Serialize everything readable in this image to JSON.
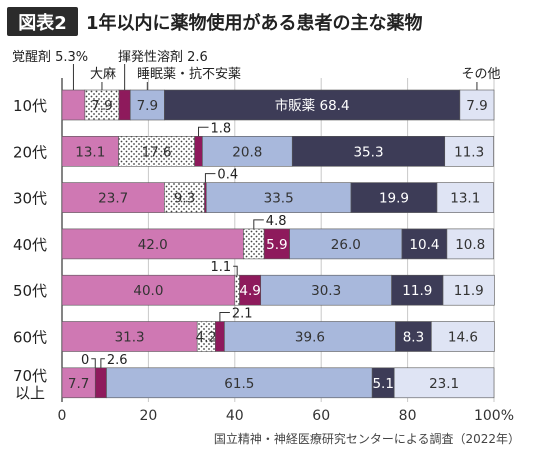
{
  "header": {
    "badge": "図表2",
    "title": "1年以内に薬物使用がある患者の主な薬物"
  },
  "source": "国立精神・神経医療研究センターによる調査（2022年）",
  "colors": {
    "header_bg": "#2b2b2b",
    "header_text": "#ffffff",
    "stimulant": "#cf78b3",
    "cannabis": "#ffffff",
    "volatile_solvent": "#8e1a5c",
    "hypnotic": "#a8b8dc",
    "otc": "#3d3c57",
    "other": "#dfe4f4"
  },
  "chart_data": {
    "type": "bar",
    "orientation": "horizontal",
    "stacked": true,
    "title": "1年以内に薬物使用がある患者の主な薬物",
    "categories": [
      "10代",
      "20代",
      "30代",
      "40代",
      "50代",
      "60代",
      "70代 以上"
    ],
    "series": [
      {
        "name": "覚醒剤",
        "color": "#cf78b3",
        "values": [
          5.3,
          13.1,
          23.7,
          42.0,
          40.0,
          31.3,
          7.7
        ]
      },
      {
        "name": "大麻",
        "color": "#ffffff",
        "pattern": "dots",
        "values": [
          7.9,
          17.6,
          9.3,
          4.8,
          1.1,
          4.2,
          0
        ]
      },
      {
        "name": "揮発性溶剤",
        "color": "#8e1a5c",
        "values": [
          2.6,
          1.8,
          0.4,
          5.9,
          4.9,
          2.1,
          2.6
        ]
      },
      {
        "name": "睡眠薬・抗不安薬",
        "color": "#a8b8dc",
        "values": [
          7.9,
          20.8,
          33.5,
          26.0,
          30.3,
          39.6,
          61.5
        ]
      },
      {
        "name": "市販薬",
        "color": "#3d3c57",
        "values": [
          68.4,
          35.3,
          19.9,
          10.4,
          11.9,
          8.3,
          5.1
        ]
      },
      {
        "name": "その他",
        "color": "#dfe4f4",
        "values": [
          7.9,
          11.3,
          13.1,
          10.8,
          11.9,
          14.6,
          23.1
        ]
      }
    ],
    "bar_labels": [
      [
        "",
        "7.9",
        "",
        "7.9",
        "市販薬 68.4",
        "7.9"
      ],
      [
        "13.1",
        "17.6",
        "",
        "20.8",
        "35.3",
        "11.3"
      ],
      [
        "23.7",
        "9.3",
        "",
        "33.5",
        "19.9",
        "13.1"
      ],
      [
        "42.0",
        "",
        "5.9",
        "26.0",
        "10.4",
        "10.8"
      ],
      [
        "40.0",
        "",
        "4.9",
        "30.3",
        "11.9",
        "11.9"
      ],
      [
        "31.3",
        "4.2",
        "",
        "39.6",
        "8.3",
        "14.6"
      ],
      [
        "7.7",
        "",
        "",
        "61.5",
        "5.1",
        "23.1"
      ]
    ],
    "callouts": [
      {
        "label": "覚醒剤 5.3%",
        "row": 0,
        "segment": 0
      },
      {
        "label": "大麻",
        "row": 0,
        "segment": 1
      },
      {
        "label": "揮発性溶剤 2.6",
        "row": 0,
        "segment": 2
      },
      {
        "label": "睡眠薬・抗不安薬",
        "row": 0,
        "segment": 3
      },
      {
        "label": "その他",
        "row": 0,
        "segment": 5
      },
      {
        "label": "1.8",
        "row": 1,
        "segment": 2
      },
      {
        "label": "0.4",
        "row": 2,
        "segment": 2
      },
      {
        "label": "4.8",
        "row": 3,
        "segment": 1
      },
      {
        "label": "1.1",
        "row": 4,
        "segment": 1
      },
      {
        "label": "2.1",
        "row": 5,
        "segment": 2
      },
      {
        "label": "0",
        "row": 6,
        "segment": 1
      },
      {
        "label": "2.6",
        "row": 6,
        "segment": 2
      }
    ],
    "x_ticks": [
      "0",
      "20",
      "40",
      "60",
      "80",
      "100%"
    ],
    "xlim": [
      0,
      100
    ],
    "grid": true
  }
}
